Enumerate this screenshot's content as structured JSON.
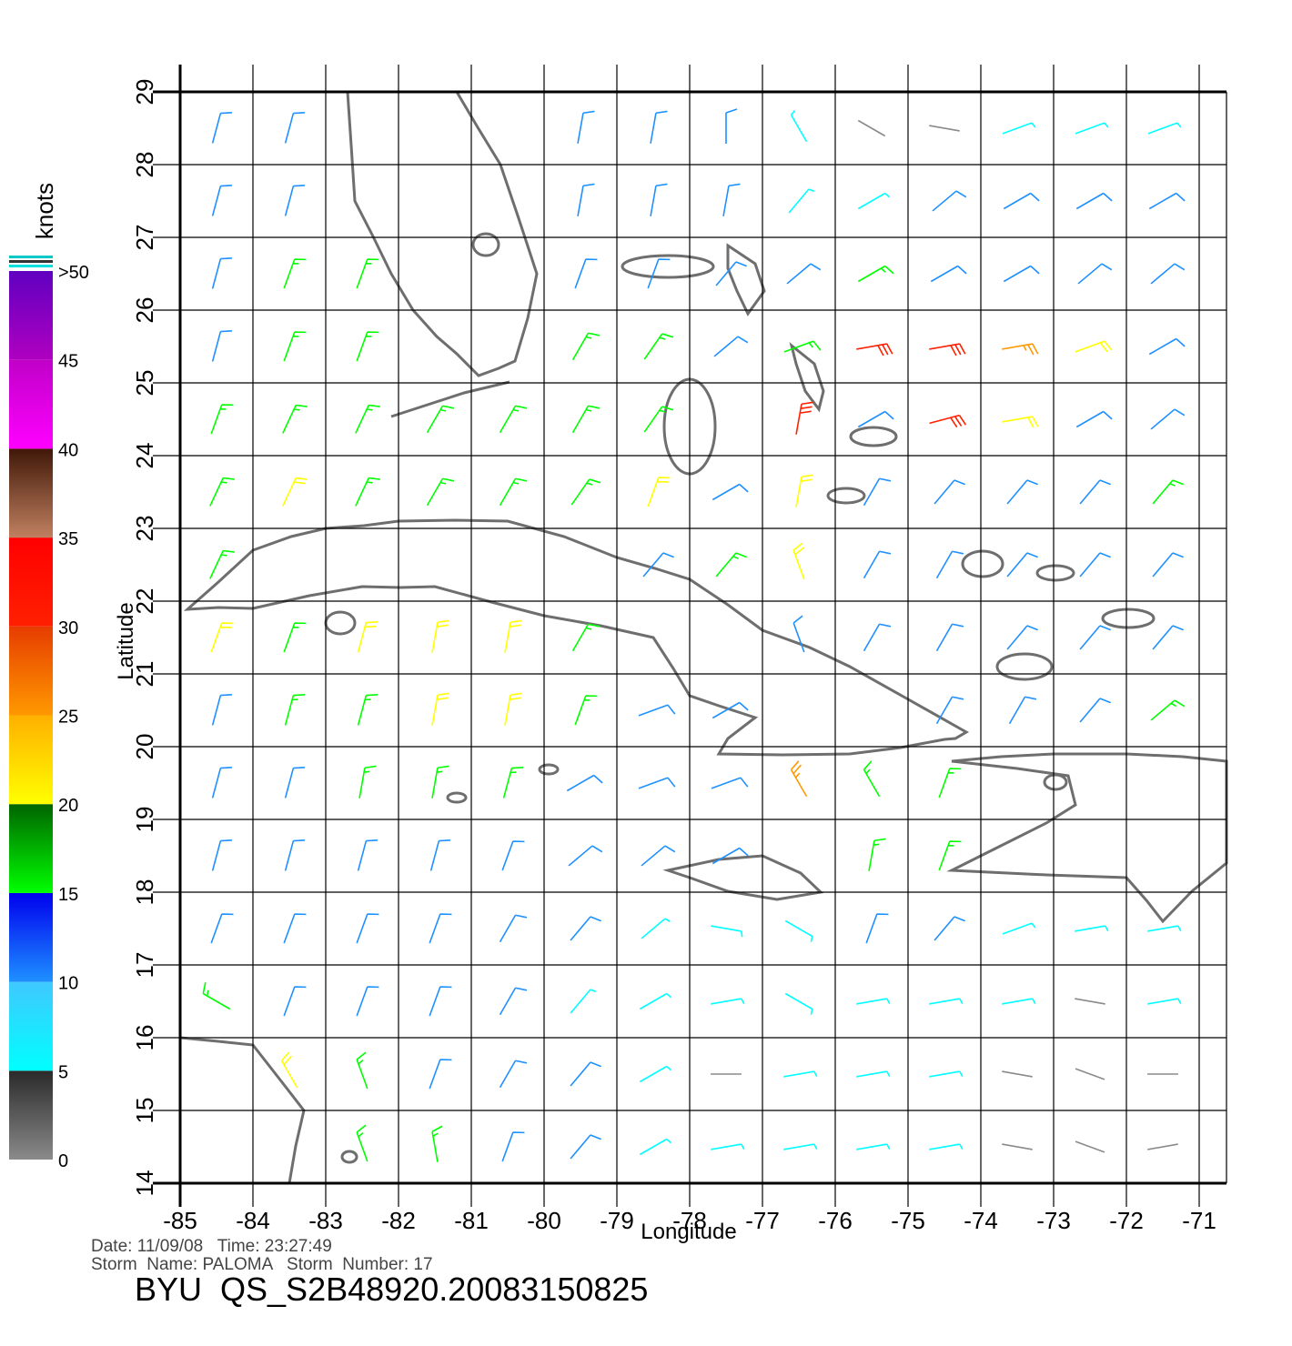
{
  "header": {
    "date_line": "Date: 11/09/08   Time: 23:27:49",
    "storm_line": "Storm  Name: PALOMA   Storm  Number: 17",
    "product": "BYU  QS_S2B48920.20083150825"
  },
  "map": {
    "xlabel": "Longitude",
    "ylabel": "Latitude",
    "xlim": [
      -85,
      -70.625
    ],
    "ylim": [
      14,
      29
    ],
    "xticks": [
      -85,
      -84,
      -83,
      -82,
      -81,
      -80,
      -79,
      -78,
      -77,
      -76,
      -75,
      -74,
      -73,
      -72,
      -71
    ],
    "yticks": [
      14,
      15,
      16,
      17,
      18,
      19,
      20,
      21,
      22,
      23,
      24,
      25,
      26,
      27,
      28,
      29
    ],
    "grid": true
  },
  "colorbar": {
    "title": "knots",
    "ticks": [
      0,
      5,
      10,
      15,
      20,
      25,
      30,
      35,
      40,
      45,
      {
        "value": 50,
        "label": ">50"
      }
    ],
    "colors": [
      [
        "#8a8a8a",
        "#2a2a2a"
      ],
      [
        "#00ffff",
        "#40c8ff"
      ],
      [
        "#1e90ff",
        "#0000ee"
      ],
      [
        "#00ff00",
        "#006400"
      ],
      [
        "#ffff00",
        "#ffb000"
      ],
      [
        "#ff9900",
        "#e63c00"
      ],
      [
        "#ff2000",
        "#ff0000"
      ],
      [
        "#c08060",
        "#401808"
      ],
      [
        "#ff00ff",
        "#c000c8"
      ],
      [
        "#b000c0",
        "#6000c0"
      ]
    ]
  },
  "wind": {
    "lons": [
      -84.5,
      -83.5,
      -82.5,
      -81.5,
      -80.5,
      -79.5,
      -78.5,
      -77.5,
      -76.5,
      -75.5,
      -74.5,
      -73.5,
      -72.5,
      -71.5
    ],
    "lats": [
      28.5,
      27.5,
      26.5,
      25.5,
      24.5,
      23.5,
      22.5,
      21.5,
      20.5,
      19.5,
      18.5,
      17.5,
      16.5,
      15.5,
      14.5
    ],
    "speed": [
      [
        12,
        12,
        null,
        null,
        null,
        12,
        12,
        11,
        6,
        4,
        4,
        8,
        8,
        8
      ],
      [
        12,
        12,
        null,
        null,
        null,
        12,
        12,
        11,
        7,
        8,
        10,
        11,
        11,
        10
      ],
      [
        12,
        17,
        17,
        null,
        null,
        12,
        12,
        14,
        14,
        16,
        13,
        12,
        12,
        11
      ],
      [
        13,
        17,
        17,
        null,
        null,
        17,
        17,
        13,
        17,
        31,
        30,
        27,
        23,
        13
      ],
      [
        17,
        18,
        17,
        17,
        18,
        18,
        19,
        null,
        30,
        14,
        31,
        22,
        13,
        12
      ],
      [
        17,
        20,
        17,
        17,
        17,
        18,
        20,
        13,
        22,
        11,
        12,
        13,
        14,
        15
      ],
      [
        16,
        null,
        null,
        null,
        null,
        null,
        14,
        16,
        22,
        12,
        12,
        12,
        14,
        14
      ],
      [
        20,
        18,
        22,
        22,
        22,
        17,
        null,
        null,
        14,
        12,
        12,
        11,
        12,
        14
      ],
      [
        12,
        15,
        19,
        21,
        20,
        17,
        14,
        12,
        null,
        null,
        12,
        12,
        12,
        18
      ],
      [
        12,
        14,
        16,
        16,
        17,
        13,
        12,
        12,
        25,
        16,
        16,
        null,
        null,
        null
      ],
      [
        12,
        12,
        13,
        14,
        13,
        12,
        10,
        12,
        null,
        17,
        16,
        null,
        null,
        null
      ],
      [
        11,
        12,
        12,
        11,
        12,
        10,
        8,
        5,
        5,
        11,
        10,
        9,
        8,
        8
      ],
      [
        17,
        12,
        12,
        12,
        11,
        9,
        8,
        7,
        6,
        7,
        8,
        5,
        4,
        8
      ],
      [
        null,
        20,
        17,
        12,
        11,
        10,
        8,
        4,
        6,
        7,
        8,
        4,
        4,
        4
      ],
      [
        null,
        null,
        18,
        17,
        12,
        11,
        9,
        6,
        6,
        8,
        9,
        3,
        4,
        3
      ]
    ],
    "direction": [
      [
        15,
        15,
        null,
        null,
        null,
        10,
        10,
        0,
        330,
        300,
        280,
        70,
        70,
        70
      ],
      [
        15,
        15,
        null,
        null,
        null,
        10,
        10,
        10,
        40,
        60,
        50,
        60,
        60,
        60
      ],
      [
        15,
        20,
        20,
        null,
        null,
        20,
        20,
        40,
        50,
        60,
        60,
        60,
        50,
        50
      ],
      [
        15,
        20,
        20,
        null,
        null,
        30,
        35,
        50,
        70,
        80,
        80,
        80,
        70,
        60
      ],
      [
        20,
        25,
        25,
        30,
        30,
        30,
        35,
        null,
        10,
        60,
        75,
        80,
        60,
        50
      ],
      [
        25,
        25,
        25,
        30,
        30,
        35,
        20,
        60,
        10,
        30,
        40,
        40,
        40,
        40
      ],
      [
        25,
        null,
        null,
        null,
        null,
        null,
        40,
        40,
        340,
        30,
        30,
        40,
        40,
        40
      ],
      [
        20,
        20,
        15,
        10,
        10,
        30,
        null,
        null,
        340,
        30,
        30,
        40,
        40,
        40
      ],
      [
        15,
        15,
        15,
        10,
        10,
        20,
        70,
        60,
        null,
        null,
        30,
        30,
        40,
        50
      ],
      [
        15,
        15,
        10,
        10,
        15,
        60,
        70,
        70,
        330,
        330,
        20,
        null,
        null,
        null
      ],
      [
        15,
        15,
        15,
        15,
        20,
        50,
        50,
        60,
        null,
        10,
        20,
        null,
        null,
        null
      ],
      [
        20,
        20,
        20,
        20,
        30,
        40,
        50,
        100,
        120,
        20,
        40,
        70,
        80,
        80
      ],
      [
        300,
        20,
        20,
        20,
        30,
        40,
        60,
        80,
        120,
        80,
        80,
        80,
        100,
        80
      ],
      [
        null,
        330,
        340,
        20,
        30,
        40,
        60,
        90,
        80,
        80,
        80,
        100,
        110,
        90
      ],
      [
        null,
        null,
        340,
        350,
        20,
        40,
        60,
        80,
        80,
        80,
        80,
        100,
        110,
        80
      ]
    ]
  }
}
